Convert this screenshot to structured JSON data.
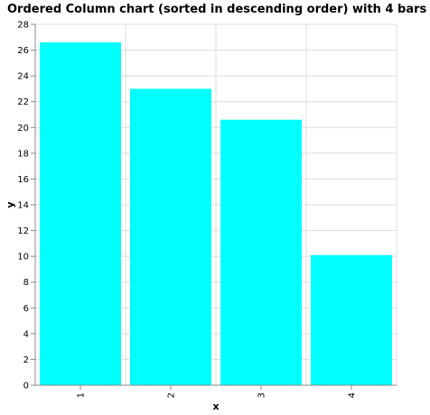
{
  "chart_data": {
    "type": "bar",
    "title": "Ordered Column chart (sorted in descending order) with 4 bars",
    "categories": [
      "1",
      "2",
      "3",
      "4"
    ],
    "values": [
      26.6,
      23.0,
      20.6,
      10.1
    ],
    "xlabel": "x",
    "ylabel": "y",
    "ylim": [
      0,
      28
    ],
    "yticks": [
      0,
      2,
      4,
      6,
      8,
      10,
      12,
      14,
      16,
      18,
      20,
      22,
      24,
      26,
      28
    ],
    "grid": true,
    "bar_color": "#00ffff",
    "grid_color": "#dddddd",
    "axis_color": "#888888"
  }
}
